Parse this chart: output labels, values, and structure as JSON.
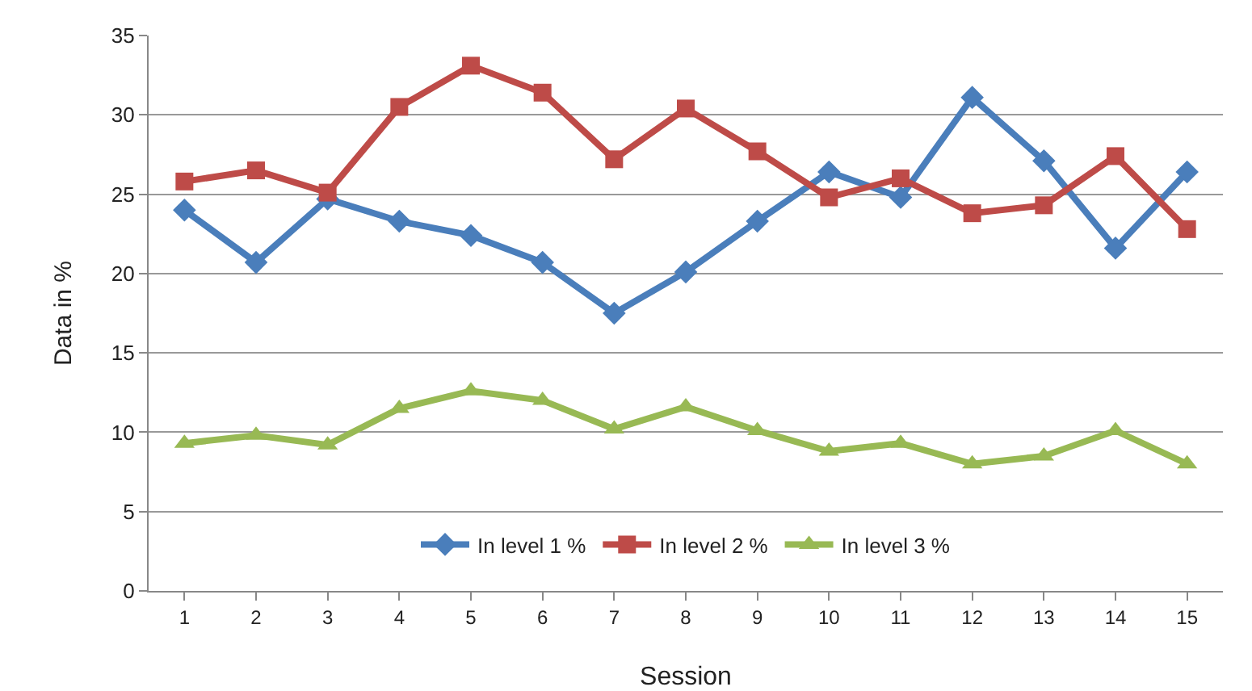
{
  "chart_data": {
    "type": "line",
    "xlabel": "Session",
    "ylabel": "Data in %",
    "x": [
      1,
      2,
      3,
      4,
      5,
      6,
      7,
      8,
      9,
      10,
      11,
      12,
      13,
      14,
      15
    ],
    "xlim": [
      0.5,
      15.5
    ],
    "xticks": [
      1,
      2,
      3,
      4,
      5,
      6,
      7,
      8,
      9,
      10,
      11,
      12,
      13,
      14,
      15
    ],
    "series": [
      {
        "name": "In level 1 %",
        "color": "#4a7ebb",
        "marker": "diamond",
        "values": [
          24,
          20.7,
          24.7,
          23.3,
          22.4,
          20.7,
          17.5,
          20.1,
          23.3,
          26.4,
          24.8,
          31.1,
          27.1,
          21.6,
          26.4
        ]
      },
      {
        "name": "In level 2 %",
        "color": "#be4b48",
        "marker": "square",
        "values": [
          25.8,
          26.5,
          25.1,
          30.5,
          33.1,
          31.4,
          27.2,
          30.4,
          27.7,
          24.8,
          26,
          23.8,
          24.3,
          27.4,
          22.8
        ]
      },
      {
        "name": "In level 3 %",
        "color": "#98b954",
        "marker": "triangle",
        "values": [
          9.3,
          9.8,
          9.2,
          11.5,
          12.6,
          12,
          10.2,
          11.6,
          10.1,
          8.8,
          9.3,
          8,
          8.5,
          10.1,
          8
        ]
      }
    ],
    "ylim": [
      0,
      35
    ],
    "yticks": [
      0,
      5,
      10,
      15,
      20,
      25,
      30,
      35
    ],
    "grid": "y",
    "legend": "bottom",
    "line_style": "solid"
  }
}
